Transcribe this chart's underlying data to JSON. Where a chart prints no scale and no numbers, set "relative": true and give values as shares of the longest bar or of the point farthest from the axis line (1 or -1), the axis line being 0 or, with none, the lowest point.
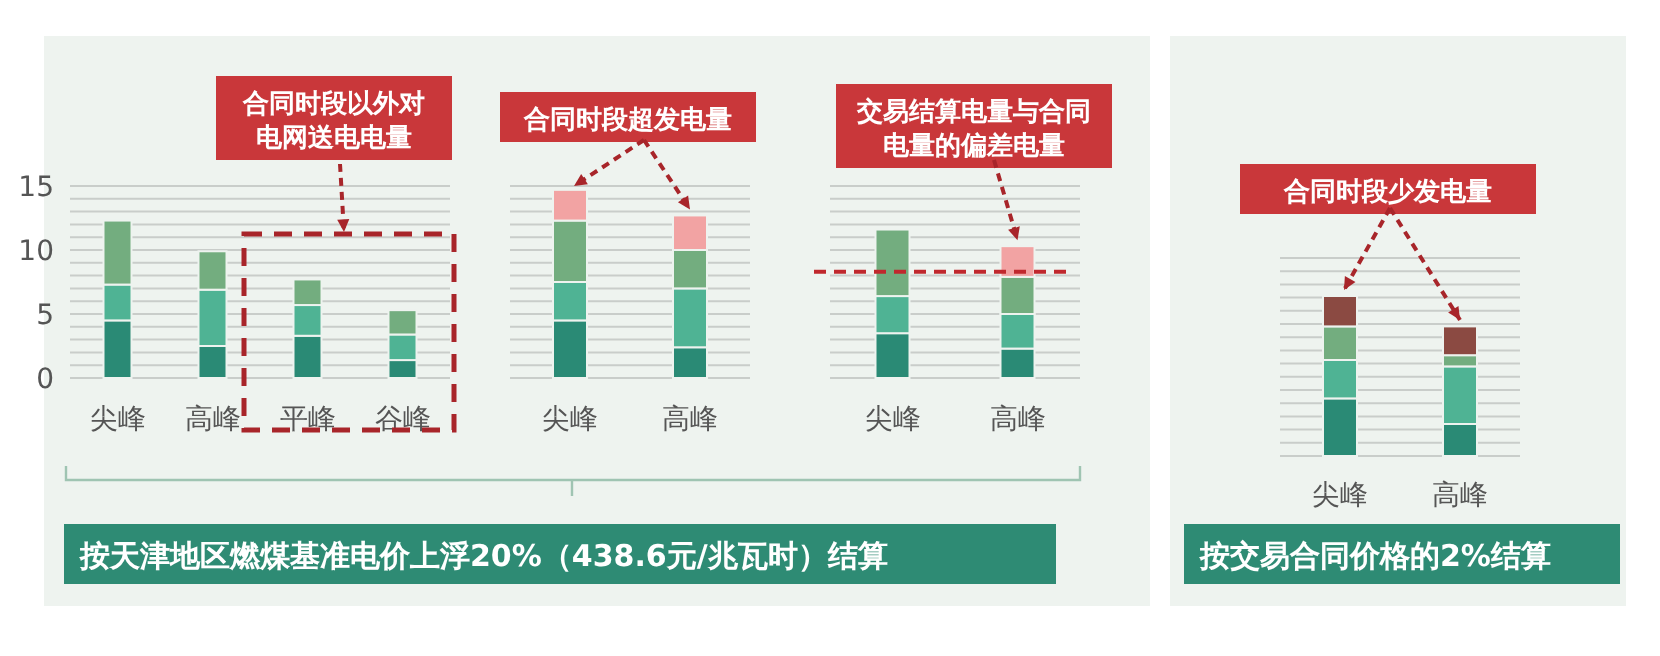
{
  "chart_data": [
    {
      "type": "bar",
      "stacked": true,
      "categories": [
        "尖峰",
        "高峰",
        "平峰",
        "谷峰"
      ],
      "ylim": [
        0,
        15
      ],
      "yticks": [
        0,
        5,
        10,
        15
      ],
      "grid": true,
      "series": [
        {
          "color": "#2a8a75",
          "values": [
            4.5,
            2.5,
            3.3,
            1.4
          ]
        },
        {
          "color": "#4fb394",
          "values": [
            2.8,
            4.4,
            2.4,
            2.0
          ]
        },
        {
          "color": "#73ad7f",
          "values": [
            5.0,
            3.0,
            2.0,
            1.9
          ]
        }
      ],
      "annotations": [
        "合同时段以外对电网送电电量",
        "按天津地区燃煤基准电价上浮20%（438.6元/兆瓦时）结算"
      ]
    },
    {
      "type": "bar",
      "stacked": true,
      "categories": [
        "尖峰",
        "高峰"
      ],
      "ylim": [
        0,
        15
      ],
      "grid": true,
      "tick_labels": "x",
      "series": [
        {
          "color": "#2a8a75",
          "values": [
            4.5,
            2.4
          ]
        },
        {
          "color": "#4fb394",
          "values": [
            3.0,
            4.6
          ]
        },
        {
          "color": "#73ad7f",
          "values": [
            4.8,
            3.0
          ]
        },
        {
          "color": "#f2a3a3",
          "values": [
            2.4,
            2.7
          ]
        }
      ],
      "annotations": [
        {
          "text": "合同时段超发电量",
          "x": "高峰",
          "y": 12.7
        }
      ]
    },
    {
      "type": "bar",
      "stacked": true,
      "categories": [
        "尖峰",
        "高峰"
      ],
      "ylim": [
        0,
        15
      ],
      "grid": true,
      "tick_labels": "x",
      "series": [
        {
          "color": "#2a8a75",
          "values": [
            3.5,
            2.3
          ]
        },
        {
          "color": "#4fb394",
          "values": [
            2.9,
            2.7
          ]
        },
        {
          "color": "#73ad7f",
          "values": [
            5.2,
            2.9
          ]
        },
        {
          "color": "#f2a3a3",
          "values": [
            null,
            2.4
          ]
        }
      ],
      "ref_lines": [
        {
          "axis": "y",
          "value": 8.3,
          "color": "#c0282d",
          "line_style": "dashed"
        }
      ],
      "annotations": [
        {
          "text": "交易结算电量与合同电量的偏差电量",
          "x": "高峰",
          "y": 10.3
        }
      ]
    },
    {
      "type": "bar",
      "stacked": true,
      "relative": true,
      "categories": [
        "尖峰",
        "高峰"
      ],
      "grid": true,
      "series": [
        {
          "color": "#2a8a75",
          "values": [
            0.36,
            0.2
          ]
        },
        {
          "color": "#4fb394",
          "values": [
            0.24,
            0.36
          ]
        },
        {
          "color": "#73ad7f",
          "values": [
            0.21,
            0.07
          ]
        },
        {
          "color": "#8b4a42",
          "values": [
            0.19,
            0.18
          ]
        }
      ],
      "annotations": [
        "合同时段少发电量",
        "按交易合同价格的2%结算"
      ]
    }
  ]
}
